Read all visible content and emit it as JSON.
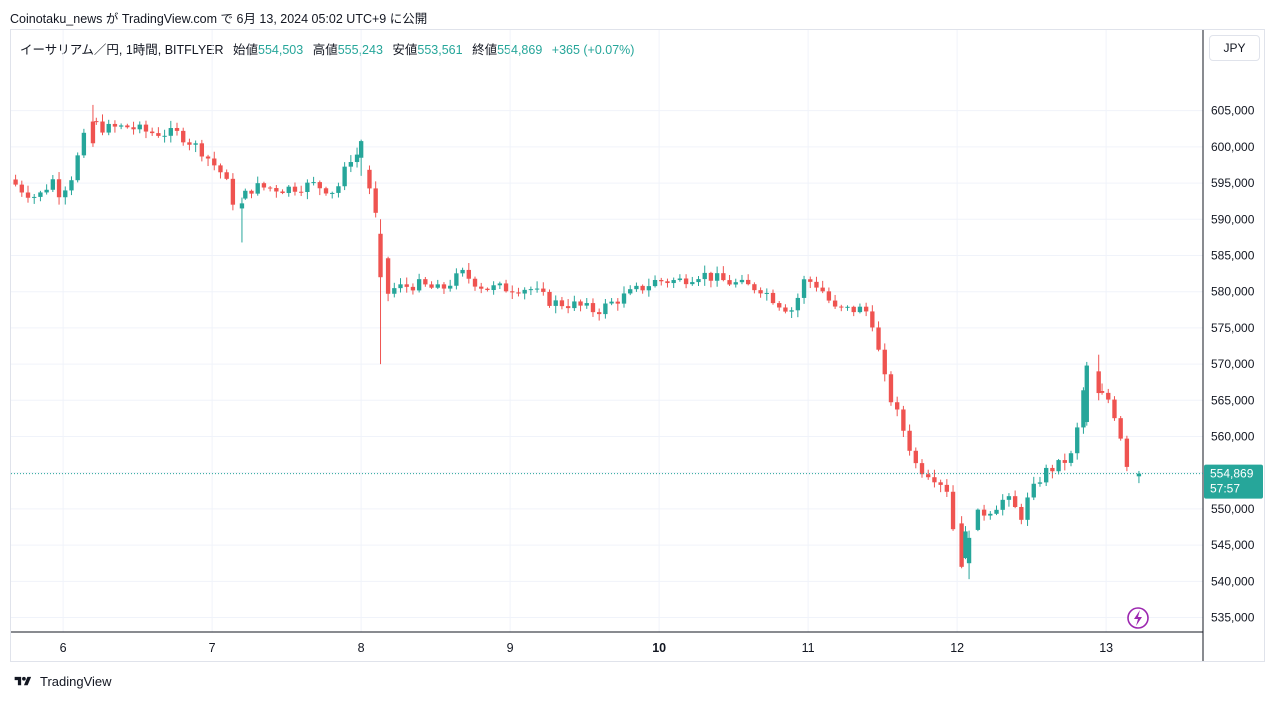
{
  "header": {
    "byline": "Coinotaku_news が TradingView.com で 6月 13, 2024 05:02 UTC+9 に公開"
  },
  "legend": {
    "symbol": "イーサリアム／円, 1時間, BITFLYER",
    "open_label": "始値",
    "open_value": "554,503",
    "high_label": "高値",
    "high_value": "555,243",
    "low_label": "安値",
    "low_value": "553,561",
    "close_label": "終値",
    "close_value": "554,869",
    "change": "+365 (+0.07%)"
  },
  "currency_button": "JPY",
  "last_price": {
    "value": "554,869",
    "countdown": "57:57",
    "price": 554869
  },
  "footer": {
    "brand": "TradingView"
  },
  "colors": {
    "up": "#26a69a",
    "down": "#ef5350",
    "grid": "#f0f3fa",
    "axis_text": "#131722"
  },
  "chart_data": {
    "type": "candlestick",
    "x_unit": "day of June 2024",
    "ylim": [
      533000,
      612000
    ],
    "xlim": [
      5.65,
      13.65
    ],
    "y_ticks": [
      {
        "value": 535000,
        "label": "535,000"
      },
      {
        "value": 540000,
        "label": "540,000"
      },
      {
        "value": 545000,
        "label": "545,000"
      },
      {
        "value": 550000,
        "label": "550,000"
      },
      {
        "value": 555000,
        "label": "555,000"
      },
      {
        "value": 560000,
        "label": "560,000"
      },
      {
        "value": 565000,
        "label": "565,000"
      },
      {
        "value": 570000,
        "label": "570,000"
      },
      {
        "value": 575000,
        "label": "575,000"
      },
      {
        "value": 580000,
        "label": "580,000"
      },
      {
        "value": 585000,
        "label": "585,000"
      },
      {
        "value": 590000,
        "label": "590,000"
      },
      {
        "value": 595000,
        "label": "595,000"
      },
      {
        "value": 600000,
        "label": "600,000"
      },
      {
        "value": 605000,
        "label": "605,000"
      }
    ],
    "x_ticks": [
      {
        "value": 6,
        "label": "6"
      },
      {
        "value": 7,
        "label": "7"
      },
      {
        "value": 8,
        "label": "8"
      },
      {
        "value": 9,
        "label": "9"
      },
      {
        "value": 10,
        "label": "10",
        "bold": true
      },
      {
        "value": 11,
        "label": "11"
      },
      {
        "value": 12,
        "label": "12"
      },
      {
        "value": 13,
        "label": "13"
      }
    ],
    "grid": true,
    "anchors": [
      [
        5.66,
        595500
      ],
      [
        5.75,
        594000
      ],
      [
        5.85,
        593000
      ],
      [
        5.95,
        595500
      ],
      [
        6.0,
        593500
      ],
      [
        6.08,
        596000
      ],
      [
        6.14,
        600000
      ],
      [
        6.2,
        603500
      ],
      [
        6.3,
        602500
      ],
      [
        6.45,
        602800
      ],
      [
        6.6,
        602000
      ],
      [
        6.8,
        601800
      ],
      [
        6.95,
        599500
      ],
      [
        7.1,
        596000
      ],
      [
        7.17,
        592000
      ],
      [
        7.3,
        594500
      ],
      [
        7.5,
        594200
      ],
      [
        7.7,
        594800
      ],
      [
        7.85,
        593800
      ],
      [
        7.95,
        598500
      ],
      [
        8.0,
        599000
      ],
      [
        8.05,
        596000
      ],
      [
        8.1,
        593000
      ],
      [
        8.15,
        586000
      ],
      [
        8.18,
        579500
      ],
      [
        8.25,
        580500
      ],
      [
        8.4,
        581000
      ],
      [
        8.55,
        580200
      ],
      [
        8.7,
        582500
      ],
      [
        8.85,
        580500
      ],
      [
        9.0,
        580500
      ],
      [
        9.15,
        580500
      ],
      [
        9.3,
        578500
      ],
      [
        9.45,
        578200
      ],
      [
        9.6,
        577300
      ],
      [
        9.75,
        579000
      ],
      [
        9.9,
        580500
      ],
      [
        10.0,
        581500
      ],
      [
        10.15,
        581500
      ],
      [
        10.3,
        582500
      ],
      [
        10.45,
        581500
      ],
      [
        10.6,
        580800
      ],
      [
        10.7,
        580500
      ],
      [
        10.85,
        578000
      ],
      [
        10.92,
        577500
      ],
      [
        11.0,
        581800
      ],
      [
        11.1,
        580700
      ],
      [
        11.2,
        577500
      ],
      [
        11.3,
        577500
      ],
      [
        11.4,
        577600
      ],
      [
        11.45,
        576000
      ],
      [
        11.5,
        571000
      ],
      [
        11.55,
        566500
      ],
      [
        11.65,
        561500
      ],
      [
        11.75,
        555800
      ],
      [
        11.85,
        554800
      ],
      [
        11.95,
        553000
      ],
      [
        12.0,
        546500
      ],
      [
        12.03,
        543500
      ],
      [
        12.08,
        546500
      ],
      [
        12.15,
        549000
      ],
      [
        12.25,
        550000
      ],
      [
        12.35,
        551500
      ],
      [
        12.45,
        549000
      ],
      [
        12.5,
        551500
      ],
      [
        12.6,
        555000
      ],
      [
        12.7,
        556000
      ],
      [
        12.8,
        557500
      ],
      [
        12.87,
        566500
      ],
      [
        12.95,
        566000
      ],
      [
        13.05,
        565000
      ],
      [
        13.12,
        560000
      ],
      [
        13.18,
        554500
      ],
      [
        13.22,
        554869
      ]
    ],
    "highlights": [
      {
        "x": 6.2,
        "o": 603500,
        "c": 600500,
        "h": 605800,
        "l": 600000
      },
      {
        "x": 7.2,
        "o": 591500,
        "c": 592200,
        "h": 593000,
        "l": 586800
      },
      {
        "x": 8.0,
        "o": 598500,
        "c": 600800,
        "h": 601000,
        "l": 596000
      },
      {
        "x": 8.13,
        "o": 588000,
        "c": 582000,
        "h": 590000,
        "l": 570000
      },
      {
        "x": 12.03,
        "o": 548000,
        "c": 542000,
        "h": 549000,
        "l": 541800
      },
      {
        "x": 12.08,
        "o": 542500,
        "c": 546000,
        "h": 547000,
        "l": 540300
      },
      {
        "x": 12.87,
        "o": 562000,
        "c": 569800,
        "h": 570300,
        "l": 561500
      },
      {
        "x": 12.95,
        "o": 569000,
        "c": 566000,
        "h": 571300,
        "l": 565000
      },
      {
        "x": 13.18,
        "o": 559800,
        "c": 554500,
        "h": 563000,
        "l": 551800
      },
      {
        "x": 13.22,
        "o": 554503,
        "c": 554869,
        "h": 555243,
        "l": 553561
      }
    ]
  }
}
